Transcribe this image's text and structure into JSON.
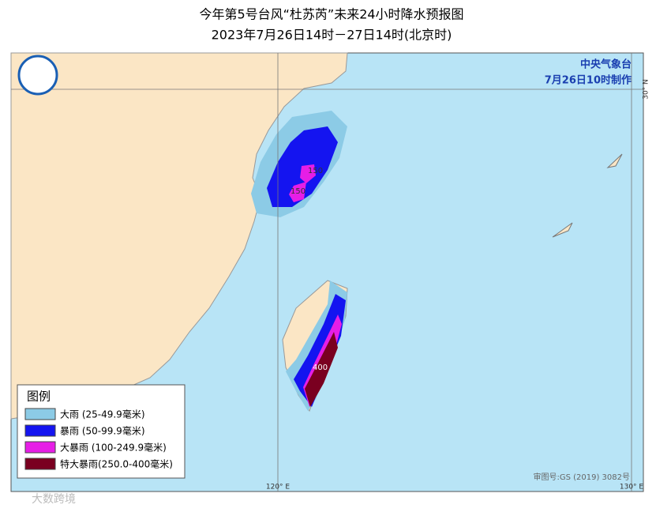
{
  "header": {
    "title": "今年第5号台风“杜苏芮”未来24小时降水预报图",
    "subtitle": "2023年7月26日14时－27日14时(北京时)"
  },
  "agency": {
    "name": "中央气象台",
    "issued": "7月26日10时制作"
  },
  "axes": {
    "lon120": "120° E",
    "lon130": "130° E",
    "lat30": "30° N"
  },
  "contour_labels": [
    "150",
    "150",
    "400"
  ],
  "legend": {
    "title": "图例",
    "items": [
      {
        "label": "大雨 (25-49.9毫米)",
        "color": "#8ccbe6"
      },
      {
        "label": "暴雨 (50-99.9毫米)",
        "color": "#1414f0"
      },
      {
        "label": "大暴雨 (100-249.9毫米)",
        "color": "#e61ee6"
      },
      {
        "label": "特大暴雨(250.0-400毫米)",
        "color": "#7a0020"
      }
    ]
  },
  "footer": {
    "approval": "审图号:GS (2019) 3082号",
    "watermark": "大数跨境"
  }
}
